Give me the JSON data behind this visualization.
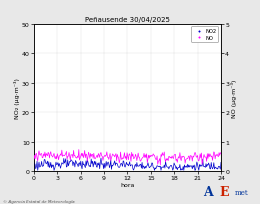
{
  "title": "Peñausende 30/04/2025",
  "xlabel": "hora",
  "ylabel_left": "NO₂ (µg·m⁻³)",
  "ylabel_right": "NO (µg·m⁻³)",
  "ylim_left": [
    0,
    50
  ],
  "ylim_right": [
    0,
    5
  ],
  "xlim": [
    0,
    24
  ],
  "xticks": [
    0,
    3,
    6,
    9,
    12,
    15,
    18,
    21,
    24
  ],
  "yticks_left": [
    0,
    10,
    20,
    30,
    40,
    50
  ],
  "yticks_right": [
    0,
    1,
    2,
    3,
    4,
    5
  ],
  "no2_color": "#0000cc",
  "no_color": "#ff00ff",
  "bg_color": "#e8e8e8",
  "plot_bg": "#ffffff",
  "watermark": "© Agencia Estatal de Meteorología",
  "legend_labels": [
    "NO2",
    "NO"
  ],
  "title_fontsize": 5,
  "axis_fontsize": 4.5,
  "tick_fontsize": 4.5,
  "no2_base": 2.0,
  "no2_noise": 0.8,
  "no_base": 5.0,
  "no_noise": 0.9
}
